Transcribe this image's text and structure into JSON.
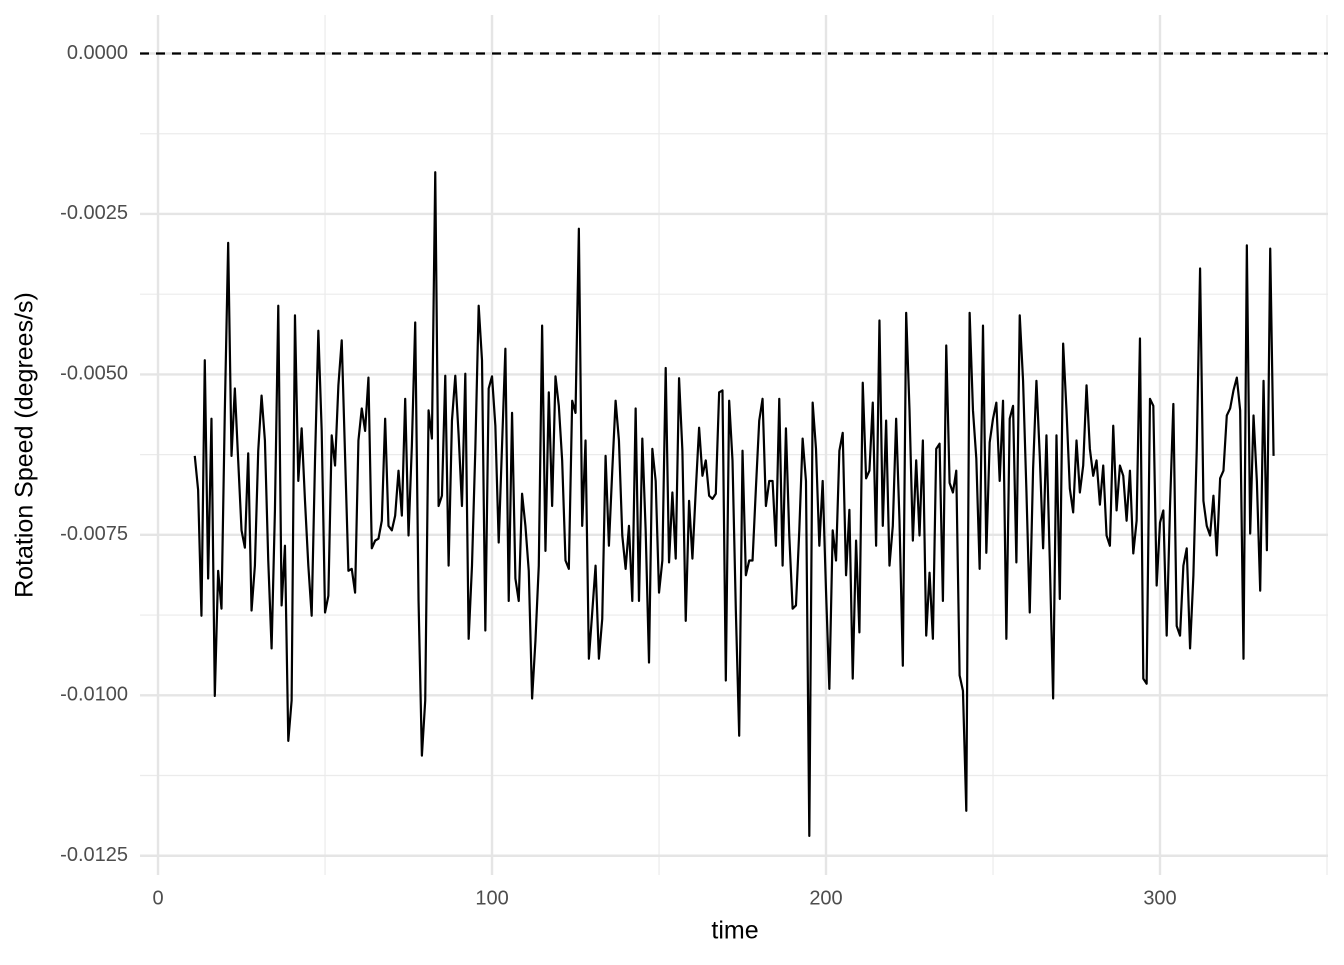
{
  "chart_data": {
    "type": "line",
    "x_label": "time",
    "y_label": "Rotation Speed (degrees/s)",
    "color": "#000000",
    "grid": true,
    "reference_line": {
      "y": 0,
      "style": "dashed"
    },
    "xlim": [
      -5.4,
      350.3
    ],
    "ylim": [
      -0.0128,
      0.0006
    ],
    "xticks": [
      0,
      100,
      200,
      300
    ],
    "yticks": [
      {
        "value": 0,
        "label": "0.0000"
      },
      {
        "value": -0.0025,
        "label": "-0.0025"
      },
      {
        "value": -0.005,
        "label": "-0.0050"
      },
      {
        "value": -0.0075,
        "label": "-0.0075"
      },
      {
        "value": -0.01,
        "label": "-0.0100"
      },
      {
        "value": -0.0125,
        "label": "-0.0125"
      }
    ],
    "x": [
      11,
      12,
      13,
      14,
      15,
      16,
      17,
      18,
      19,
      20,
      21,
      22,
      23,
      24,
      25,
      26,
      27,
      28,
      29,
      30,
      31,
      32,
      33,
      34,
      35,
      36,
      37,
      38,
      39,
      40,
      41,
      42,
      43,
      44,
      45,
      46,
      47,
      48,
      49,
      50,
      51,
      52,
      53,
      54,
      55,
      56,
      57,
      58,
      59,
      60,
      61,
      62,
      63,
      64,
      65,
      66,
      67,
      68,
      69,
      70,
      71,
      72,
      73,
      74,
      75,
      76,
      77,
      78,
      79,
      80,
      81,
      82,
      83,
      84,
      85,
      86,
      87,
      88,
      89,
      90,
      91,
      92,
      93,
      94,
      95,
      96,
      97,
      98,
      99,
      100,
      101,
      102,
      103,
      104,
      105,
      106,
      107,
      108,
      109,
      110,
      111,
      112,
      113,
      114,
      115,
      116,
      117,
      118,
      119,
      120,
      121,
      122,
      123,
      124,
      125,
      126,
      127,
      128,
      129,
      130,
      131,
      132,
      133,
      134,
      135,
      136,
      137,
      138,
      139,
      140,
      141,
      142,
      143,
      144,
      145,
      146,
      147,
      148,
      149,
      150,
      151,
      152,
      153,
      154,
      155,
      156,
      157,
      158,
      159,
      160,
      161,
      162,
      163,
      164,
      165,
      166,
      167,
      168,
      169,
      170,
      171,
      172,
      173,
      174,
      175,
      176,
      177,
      178,
      179,
      180,
      181,
      182,
      183,
      184,
      185,
      186,
      187,
      188,
      189,
      190,
      191,
      192,
      193,
      194,
      195,
      196,
      197,
      198,
      199,
      200,
      201,
      202,
      203,
      204,
      205,
      206,
      207,
      208,
      209,
      210,
      211,
      212,
      213,
      214,
      215,
      216,
      217,
      218,
      219,
      220,
      221,
      222,
      223,
      224,
      225,
      226,
      227,
      228,
      229,
      230,
      231,
      232,
      233,
      234,
      235,
      236,
      237,
      238,
      239,
      240,
      241,
      242,
      243,
      244,
      245,
      246,
      247,
      248,
      249,
      250,
      251,
      252,
      253,
      254,
      255,
      256,
      257,
      258,
      259,
      260,
      261,
      262,
      263,
      264,
      265,
      266,
      267,
      268,
      269,
      270,
      271,
      272,
      273,
      274,
      275,
      276,
      277,
      278,
      279,
      280,
      281,
      282,
      283,
      284,
      285,
      286,
      287,
      288,
      289,
      290,
      291,
      292,
      293,
      294,
      295,
      296,
      297,
      298,
      299,
      300,
      301,
      302,
      303,
      304,
      305,
      306,
      307,
      308,
      309,
      310,
      311,
      312,
      313,
      314,
      315,
      316,
      317,
      318,
      319,
      320,
      321,
      322,
      323,
      324,
      325,
      326,
      327,
      328,
      329,
      330,
      331,
      332,
      333,
      334
    ],
    "values": [
      -0.00627,
      -0.0068,
      -0.00876,
      -0.00478,
      -0.00818,
      -0.00569,
      -0.01001,
      -0.00806,
      -0.00865,
      -0.00556,
      -0.00295,
      -0.00627,
      -0.00522,
      -0.00634,
      -0.00743,
      -0.0077,
      -0.00623,
      -0.00868,
      -0.00798,
      -0.00619,
      -0.00533,
      -0.00603,
      -0.0079,
      -0.00927,
      -0.00712,
      -0.00393,
      -0.0086,
      -0.00767,
      -0.01071,
      -0.01008,
      -0.00408,
      -0.00666,
      -0.00584,
      -0.00697,
      -0.00798,
      -0.00876,
      -0.00634,
      -0.00432,
      -0.00588,
      -0.00871,
      -0.00845,
      -0.00595,
      -0.00642,
      -0.00517,
      -0.00447,
      -0.00627,
      -0.00806,
      -0.00803,
      -0.0084,
      -0.00603,
      -0.00553,
      -0.00588,
      -0.00505,
      -0.00771,
      -0.00759,
      -0.00756,
      -0.00728,
      -0.00569,
      -0.00736,
      -0.00743,
      -0.0072,
      -0.0065,
      -0.0072,
      -0.00538,
      -0.00751,
      -0.00611,
      -0.00419,
      -0.00853,
      -0.01094,
      -0.01008,
      -0.00556,
      -0.006,
      -0.00185,
      -0.00705,
      -0.00689,
      -0.00502,
      -0.00798,
      -0.00572,
      -0.00502,
      -0.00595,
      -0.00705,
      -0.00499,
      -0.00912,
      -0.00798,
      -0.00616,
      -0.00393,
      -0.00478,
      -0.00899,
      -0.00522,
      -0.00503,
      -0.0058,
      -0.00762,
      -0.00611,
      -0.0046,
      -0.00853,
      -0.0056,
      -0.00818,
      -0.00853,
      -0.00686,
      -0.00736,
      -0.00806,
      -0.01005,
      -0.00915,
      -0.00798,
      -0.00424,
      -0.00775,
      -0.00528,
      -0.00705,
      -0.00503,
      -0.00549,
      -0.00634,
      -0.0079,
      -0.00803,
      -0.00541,
      -0.0056,
      -0.00273,
      -0.00736,
      -0.00603,
      -0.00943,
      -0.00871,
      -0.00798,
      -0.00943,
      -0.00881,
      -0.00627,
      -0.00767,
      -0.0065,
      -0.00541,
      -0.00603,
      -0.00751,
      -0.00803,
      -0.00736,
      -0.00853,
      -0.00553,
      -0.00853,
      -0.006,
      -0.00743,
      -0.00949,
      -0.00616,
      -0.00666,
      -0.0084,
      -0.0079,
      -0.0049,
      -0.00793,
      -0.00684,
      -0.00787,
      -0.00506,
      -0.00619,
      -0.00884,
      -0.00697,
      -0.00787,
      -0.00681,
      -0.00583,
      -0.00658,
      -0.00634,
      -0.00689,
      -0.00694,
      -0.00686,
      -0.00528,
      -0.00525,
      -0.00977,
      -0.00541,
      -0.00634,
      -0.00868,
      -0.01063,
      -0.00619,
      -0.00813,
      -0.0079,
      -0.0079,
      -0.00678,
      -0.00572,
      -0.00538,
      -0.00705,
      -0.00666,
      -0.00666,
      -0.00767,
      -0.00538,
      -0.00798,
      -0.00584,
      -0.00751,
      -0.00865,
      -0.0086,
      -0.00743,
      -0.006,
      -0.00666,
      -0.01219,
      -0.00544,
      -0.00616,
      -0.00767,
      -0.00666,
      -0.00837,
      -0.0099,
      -0.00743,
      -0.0079,
      -0.00619,
      -0.00591,
      -0.00813,
      -0.00711,
      -0.00974,
      -0.00759,
      -0.00902,
      -0.00513,
      -0.00662,
      -0.0065,
      -0.00544,
      -0.00767,
      -0.00416,
      -0.00736,
      -0.00572,
      -0.00798,
      -0.00736,
      -0.00569,
      -0.00728,
      -0.00954,
      -0.00404,
      -0.00556,
      -0.00759,
      -0.00634,
      -0.00751,
      -0.00603,
      -0.00907,
      -0.00809,
      -0.00912,
      -0.00616,
      -0.00608,
      -0.00853,
      -0.00455,
      -0.00669,
      -0.00684,
      -0.0065,
      -0.00969,
      -0.00993,
      -0.0118,
      -0.00404,
      -0.00556,
      -0.00631,
      -0.00803,
      -0.00424,
      -0.00778,
      -0.00606,
      -0.00569,
      -0.00544,
      -0.00666,
      -0.00541,
      -0.00912,
      -0.00569,
      -0.00549,
      -0.00793,
      -0.00408,
      -0.0051,
      -0.00681,
      -0.00871,
      -0.00647,
      -0.0051,
      -0.00627,
      -0.00771,
      -0.00595,
      -0.0079,
      -0.01005,
      -0.00595,
      -0.0085,
      -0.00452,
      -0.00556,
      -0.00678,
      -0.00715,
      -0.00603,
      -0.00684,
      -0.00642,
      -0.00517,
      -0.00616,
      -0.00658,
      -0.00634,
      -0.00703,
      -0.00642,
      -0.00751,
      -0.00767,
      -0.0058,
      -0.00712,
      -0.00642,
      -0.00658,
      -0.00728,
      -0.0065,
      -0.00779,
      -0.00728,
      -0.00444,
      -0.00974,
      -0.00982,
      -0.00538,
      -0.00549,
      -0.00829,
      -0.00731,
      -0.00712,
      -0.00907,
      -0.00705,
      -0.00546,
      -0.00892,
      -0.00907,
      -0.00798,
      -0.00771,
      -0.00927,
      -0.00813,
      -0.00616,
      -0.00335,
      -0.00697,
      -0.00736,
      -0.00751,
      -0.00689,
      -0.00782,
      -0.00662,
      -0.0065,
      -0.00564,
      -0.00553,
      -0.00525,
      -0.00505,
      -0.00556,
      -0.00943,
      -0.00299,
      -0.00748,
      -0.00564,
      -0.00666,
      -0.00837,
      -0.0051,
      -0.00774,
      -0.00304,
      -0.00627
    ]
  }
}
